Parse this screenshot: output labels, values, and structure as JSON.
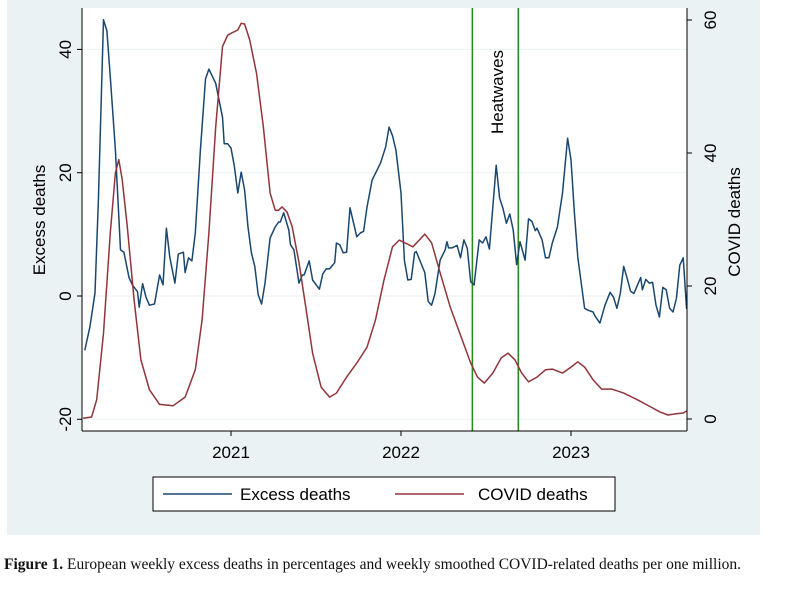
{
  "chart_data": {
    "type": "line",
    "title": "",
    "xlabel": "",
    "ylabel": "Excess deaths",
    "y2label": "COVID deaths",
    "xlim": [
      2020.13,
      2023.68
    ],
    "ylim": [
      -20,
      47
    ],
    "y2lim": [
      0,
      61
    ],
    "x_ticks": [
      2021,
      2022,
      2023
    ],
    "x_tick_labels": [
      "2021",
      "2022",
      "2023"
    ],
    "y_ticks": [
      -20,
      0,
      20,
      40
    ],
    "y_tick_labels": [
      "-20",
      "0",
      "20",
      "40"
    ],
    "y2_ticks": [
      0,
      20,
      40,
      60
    ],
    "y2_tick_labels": [
      "0",
      "20",
      "40",
      "60"
    ],
    "grid": true,
    "legend_position": "bottom",
    "background": "#eaf2f3",
    "annotation": {
      "label": "Heatwaves",
      "lines_x": [
        2022.42,
        2022.69
      ],
      "color": "#2a8a22"
    },
    "series": [
      {
        "name": "Excess deaths",
        "axis": "left",
        "color": "#1a476f",
        "x": [
          2020.14,
          2020.17,
          2020.2,
          2020.22,
          2020.25,
          2020.27,
          2020.29,
          2020.32,
          2020.35,
          2020.37,
          2020.4,
          2020.42,
          2020.45,
          2020.46,
          2020.48,
          2020.5,
          2020.52,
          2020.55,
          2020.58,
          2020.6,
          2020.62,
          2020.64,
          2020.67,
          2020.69,
          2020.72,
          2020.73,
          2020.75,
          2020.77,
          2020.79,
          2020.82,
          2020.85,
          2020.87,
          2020.91,
          2020.95,
          2020.96,
          2020.98,
          2021.0,
          2021.02,
          2021.04,
          2021.06,
          2021.08,
          2021.1,
          2021.12,
          2021.14,
          2021.16,
          2021.18,
          2021.2,
          2021.23,
          2021.26,
          2021.28,
          2021.29,
          2021.31,
          2021.34,
          2021.35,
          2021.37,
          2021.4,
          2021.42,
          2021.43,
          2021.46,
          2021.48,
          2021.52,
          2021.54,
          2021.56,
          2021.58,
          2021.61,
          2021.62,
          2021.64,
          2021.66,
          2021.68,
          2021.7,
          2021.74,
          2021.76,
          2021.78,
          2021.8,
          2021.83,
          2021.85,
          2021.88,
          2021.91,
          2021.93,
          2021.95,
          2021.97,
          2022.0,
          2022.02,
          2022.04,
          2022.06,
          2022.08,
          2022.09,
          2022.14,
          2022.16,
          2022.18,
          2022.2,
          2022.23,
          2022.26,
          2022.27,
          2022.28,
          2022.3,
          2022.33,
          2022.35,
          2022.37,
          2022.39,
          2022.41,
          2022.43,
          2022.46,
          2022.48,
          2022.5,
          2022.52,
          2022.56,
          2022.58,
          2022.6,
          2022.62,
          2022.64,
          2022.66,
          2022.68,
          2022.7,
          2022.73,
          2022.75,
          2022.77,
          2022.79,
          2022.8,
          2022.83,
          2022.85,
          2022.87,
          2022.89,
          2022.92,
          2022.95,
          2022.98,
          2023.0,
          2023.02,
          2023.04,
          2023.08,
          2023.1,
          2023.13,
          2023.14,
          2023.17,
          2023.2,
          2023.23,
          2023.25,
          2023.27,
          2023.29,
          2023.31,
          2023.33,
          2023.35,
          2023.37,
          2023.41,
          2023.42,
          2023.44,
          2023.46,
          2023.48,
          2023.5,
          2023.52,
          2023.54,
          2023.56,
          2023.58,
          2023.6,
          2023.62,
          2023.64,
          2023.66,
          2023.68
        ],
        "y": [
          -8.8,
          -5,
          0.5,
          15.6,
          44.8,
          43,
          35.5,
          23.7,
          7.5,
          7.1,
          3,
          1.8,
          0.7,
          -1.8,
          2,
          -0.2,
          -1.5,
          -1.3,
          3.4,
          1.8,
          11,
          6.3,
          2.1,
          6.8,
          7.1,
          3.8,
          6.2,
          5.7,
          10.2,
          23.7,
          35.2,
          36.8,
          34.5,
          29,
          24.7,
          24.7,
          24,
          21,
          16.7,
          20.1,
          17.2,
          11.2,
          7,
          4.8,
          0.2,
          -1.3,
          2.1,
          9.4,
          11.2,
          12,
          12,
          13.5,
          10.7,
          8.3,
          7.5,
          2.1,
          3.4,
          3.4,
          5.7,
          2.6,
          1.1,
          3.6,
          4.4,
          4.4,
          5.4,
          8.6,
          8.3,
          7,
          7.1,
          14.3,
          9.6,
          10.2,
          10.5,
          14.4,
          18.8,
          19.9,
          21.6,
          24.2,
          27.4,
          26,
          23.7,
          16.7,
          5.8,
          2.6,
          2.7,
          7,
          7.2,
          3.8,
          -0.9,
          -1.5,
          0.4,
          5.8,
          7.5,
          8.8,
          7.8,
          7.8,
          8.2,
          6.2,
          9.1,
          7.7,
          2.3,
          1.8,
          9.1,
          8.6,
          9.6,
          7.6,
          21.2,
          15.9,
          14.2,
          11.8,
          13.3,
          10.7,
          5.1,
          8.8,
          5.8,
          12.5,
          12.1,
          10.6,
          11,
          9.1,
          6.2,
          6.2,
          8.6,
          11.2,
          16.7,
          25.6,
          22.1,
          13.5,
          6.3,
          -2,
          -2.3,
          -2.6,
          -3.2,
          -4.4,
          -1.5,
          0.6,
          -0.2,
          -2,
          0.4,
          4.8,
          2.9,
          0.8,
          0.4,
          3,
          1,
          2.7,
          2.1,
          2.2,
          -1.5,
          -3.4,
          1.4,
          1,
          -2,
          -2.6,
          -0.4,
          5,
          6.2,
          -2.1
        ]
      },
      {
        "name": "COVID deaths",
        "axis": "right",
        "color": "#90353b",
        "x": [
          2020.13,
          2020.18,
          2020.21,
          2020.25,
          2020.29,
          2020.32,
          2020.34,
          2020.36,
          2020.39,
          2020.43,
          2020.47,
          2020.52,
          2020.58,
          2020.66,
          2020.73,
          2020.79,
          2020.83,
          2020.87,
          2020.91,
          2020.95,
          2020.98,
          2021.0,
          2021.04,
          2021.06,
          2021.08,
          2021.11,
          2021.15,
          2021.19,
          2021.23,
          2021.26,
          2021.28,
          2021.3,
          2021.33,
          2021.36,
          2021.4,
          2021.44,
          2021.48,
          2021.53,
          2021.58,
          2021.62,
          2021.68,
          2021.74,
          2021.8,
          2021.85,
          2021.9,
          2021.95,
          2021.99,
          2022.07,
          2022.14,
          2022.18,
          2022.23,
          2022.29,
          2022.36,
          2022.41,
          2022.45,
          2022.49,
          2022.54,
          2022.59,
          2022.63,
          2022.67,
          2022.71,
          2022.75,
          2022.8,
          2022.85,
          2022.89,
          2022.95,
          2023.0,
          2023.04,
          2023.08,
          2023.13,
          2023.18,
          2023.24,
          2023.31,
          2023.39,
          2023.47,
          2023.52,
          2023.57,
          2023.62,
          2023.66,
          2023.68
        ],
        "y": [
          0.1,
          0.3,
          2.9,
          12.9,
          28,
          37,
          39,
          36,
          28.9,
          17.9,
          8.9,
          4.4,
          2.2,
          2,
          3.3,
          7.4,
          14.9,
          28,
          43.9,
          56,
          57.7,
          58,
          58.5,
          59.5,
          59.4,
          57,
          52,
          44,
          34,
          31.4,
          31.4,
          31.9,
          31.1,
          28.9,
          23.5,
          16.8,
          9.9,
          4.8,
          3.3,
          3.9,
          6.3,
          8.4,
          10.8,
          14.9,
          20.9,
          25.9,
          26.9,
          25.9,
          27.8,
          26.5,
          22,
          16.8,
          11.9,
          8.4,
          6.3,
          5.4,
          6.9,
          9.2,
          9.9,
          8.9,
          6.9,
          5.6,
          6.3,
          7.4,
          7.5,
          6.9,
          7.8,
          8.6,
          7.8,
          5.9,
          4.5,
          4.5,
          3.9,
          2.9,
          1.8,
          1.1,
          0.6,
          0.8,
          0.9,
          1.2
        ]
      }
    ]
  },
  "caption": {
    "label": "Figure 1.",
    "text": " European weekly excess deaths in percentages and weekly smoothed COVID-related deaths per one million."
  }
}
